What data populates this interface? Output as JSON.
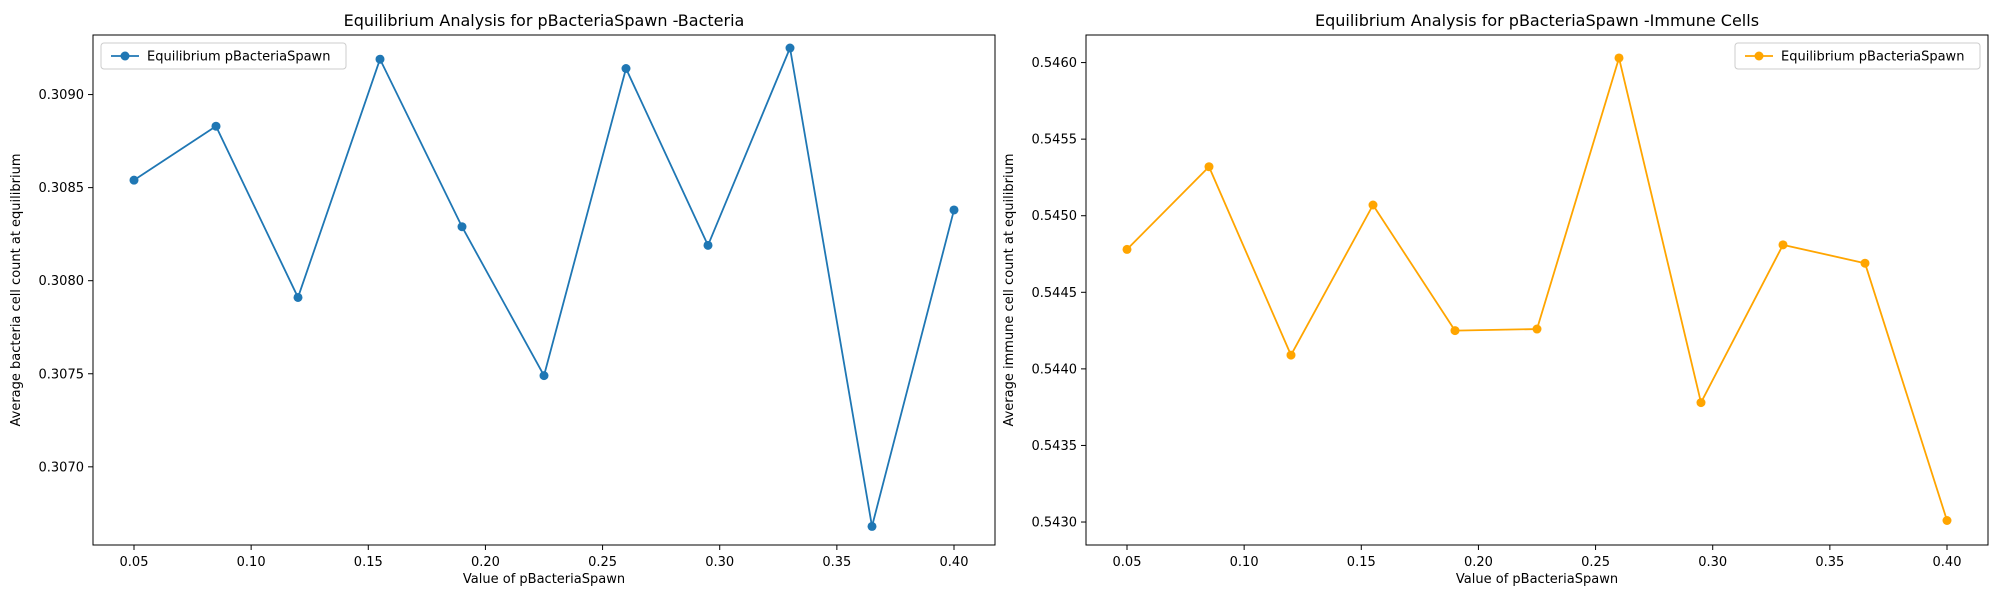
{
  "chart_data": [
    {
      "type": "line",
      "title": "Equilibrium Analysis for pBacteriaSpawn -Bacteria",
      "xlabel": "Value of pBacteriaSpawn",
      "ylabel": "Average bacteria cell count at equilibrium",
      "xlim": [
        0.0325,
        0.4175
      ],
      "ylim": [
        0.30658,
        0.30932
      ],
      "xticks": [
        "0.05",
        "0.10",
        "0.15",
        "0.20",
        "0.25",
        "0.30",
        "0.35",
        "0.40"
      ],
      "yticks": [
        "0.3070",
        "0.3075",
        "0.3080",
        "0.3085",
        "0.3090"
      ],
      "grid": false,
      "legend_position": "upper-left",
      "series": [
        {
          "name": "Equilibrium pBacteriaSpawn",
          "color": "#1f77b4",
          "marker": "circle",
          "x": [
            0.05,
            0.085,
            0.12,
            0.155,
            0.19,
            0.225,
            0.26,
            0.295,
            0.33,
            0.365,
            0.4
          ],
          "y": [
            0.30854,
            0.30883,
            0.30791,
            0.30919,
            0.30829,
            0.30749,
            0.30914,
            0.30819,
            0.30925,
            0.30668,
            0.30838
          ]
        }
      ]
    },
    {
      "type": "line",
      "title": "Equilibrium Analysis for pBacteriaSpawn -Immune Cells",
      "xlabel": "Value of pBacteriaSpawn",
      "ylabel": "Average immune cell count at equilibrium",
      "xlim": [
        0.0325,
        0.4175
      ],
      "ylim": [
        0.54285,
        0.54618
      ],
      "xticks": [
        "0.05",
        "0.10",
        "0.15",
        "0.20",
        "0.25",
        "0.30",
        "0.35",
        "0.40"
      ],
      "yticks": [
        "0.5430",
        "0.5435",
        "0.5440",
        "0.5445",
        "0.5450",
        "0.5455",
        "0.5460"
      ],
      "grid": false,
      "legend_position": "upper-right",
      "series": [
        {
          "name": "Equilibrium pBacteriaSpawn",
          "color": "#ffa500",
          "marker": "circle",
          "x": [
            0.05,
            0.085,
            0.12,
            0.155,
            0.19,
            0.225,
            0.26,
            0.295,
            0.33,
            0.365,
            0.4
          ],
          "y": [
            0.54478,
            0.54532,
            0.54409,
            0.54507,
            0.54425,
            0.54426,
            0.54603,
            0.54378,
            0.54481,
            0.54469,
            0.54301
          ]
        }
      ]
    }
  ]
}
